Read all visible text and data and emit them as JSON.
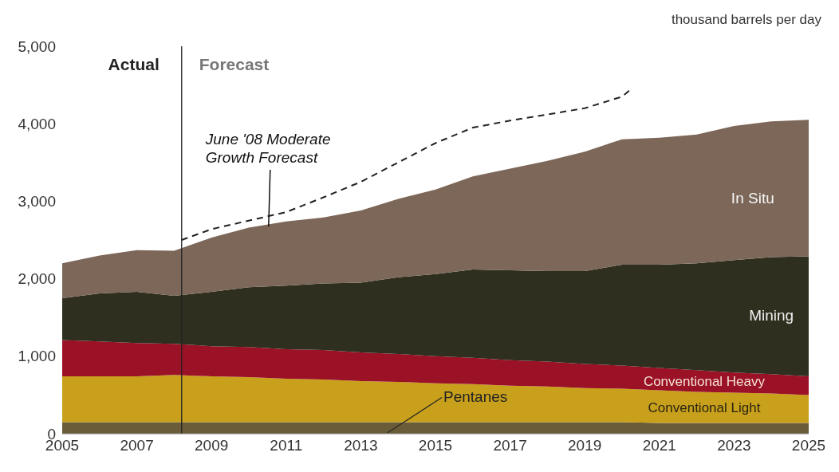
{
  "chart_data": {
    "type": "area",
    "stacked": true,
    "ylabel": "thousand barrels per day",
    "x": [
      2005,
      2006,
      2007,
      2008,
      2009,
      2010,
      2011,
      2012,
      2013,
      2014,
      2015,
      2016,
      2017,
      2018,
      2019,
      2020,
      2021,
      2022,
      2023,
      2024,
      2025
    ],
    "xlim": [
      2005,
      2025
    ],
    "xticks": [
      2005,
      2007,
      2009,
      2011,
      2013,
      2015,
      2017,
      2019,
      2021,
      2023,
      2025
    ],
    "ylim": [
      0,
      5000
    ],
    "yticks": [
      0,
      {
        "value": 1000,
        "label": "1,000"
      },
      {
        "value": 2000,
        "label": "2,000"
      },
      {
        "value": 3000,
        "label": "3,000"
      },
      {
        "value": 4000,
        "label": "4,000"
      },
      {
        "value": 5000,
        "label": "5,000"
      }
    ],
    "grid": false,
    "legend": false,
    "series": [
      {
        "name": "Pentanes",
        "color": "#6a5c38",
        "values": [
          150,
          150,
          150,
          150,
          150,
          150,
          150,
          150,
          150,
          150,
          150,
          150,
          150,
          150,
          150,
          150,
          140,
          140,
          140,
          140,
          140
        ]
      },
      {
        "name": "Conventional Light",
        "color": "#c8a01c",
        "values": [
          590,
          590,
          590,
          610,
          590,
          580,
          560,
          550,
          530,
          520,
          500,
          490,
          470,
          460,
          440,
          430,
          420,
          400,
          390,
          380,
          360
        ]
      },
      {
        "name": "Conventional Heavy",
        "color": "#9b1126",
        "values": [
          470,
          450,
          430,
          400,
          390,
          390,
          380,
          380,
          370,
          360,
          350,
          340,
          330,
          320,
          310,
          300,
          290,
          280,
          260,
          250,
          240
        ]
      },
      {
        "name": "Mining",
        "color": "#2f2f1f",
        "values": [
          540,
          620,
          660,
          620,
          700,
          770,
          820,
          860,
          900,
          990,
          1060,
          1140,
          1160,
          1170,
          1200,
          1300,
          1330,
          1380,
          1450,
          1510,
          1550
        ]
      },
      {
        "name": "In Situ",
        "color": "#7c6759",
        "values": [
          450,
          490,
          540,
          580,
          700,
          770,
          830,
          850,
          930,
          1010,
          1090,
          1200,
          1310,
          1420,
          1540,
          1620,
          1640,
          1660,
          1730,
          1750,
          1760
        ]
      },
      {
        "name": "June '08 Moderate Growth Forecast",
        "type": "line",
        "line_style": "dashed",
        "color": "#222222",
        "x": [
          2008.2,
          2009,
          2010,
          2011,
          2012,
          2013,
          2014,
          2015,
          2016,
          2017,
          2018,
          2019,
          2020,
          2020.2
        ],
        "values": [
          2500,
          2640,
          2750,
          2860,
          3050,
          3250,
          3500,
          3750,
          3950,
          4040,
          4120,
          4200,
          4350,
          4430
        ]
      }
    ],
    "ref_lines": [
      {
        "axis": "x",
        "value": 2008.2,
        "color": "#222222"
      }
    ],
    "annotations": [
      "Actual",
      "Forecast"
    ]
  }
}
